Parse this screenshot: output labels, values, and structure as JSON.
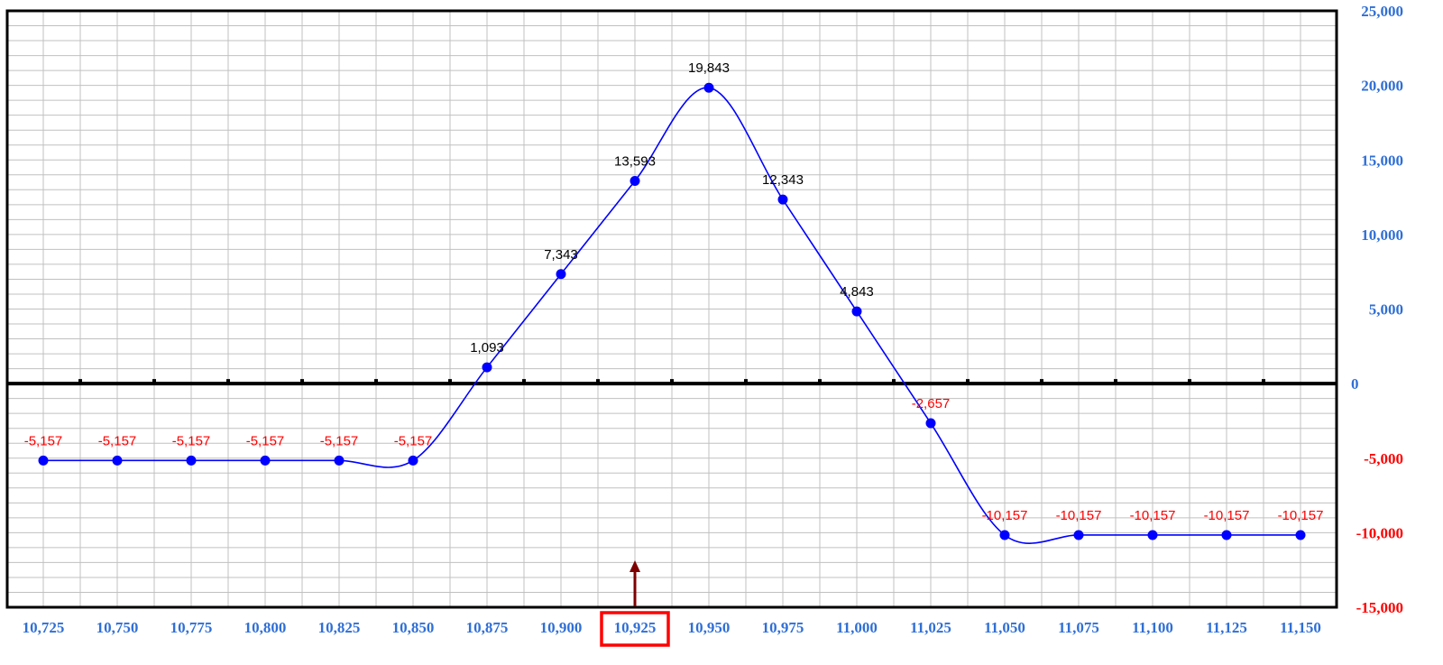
{
  "chart_data": {
    "type": "line",
    "x": [
      10725,
      10750,
      10775,
      10800,
      10825,
      10850,
      10875,
      10900,
      10925,
      10950,
      10975,
      11000,
      11025,
      11050,
      11075,
      11100,
      11125,
      11150
    ],
    "x_labels": [
      "10,725",
      "10,750",
      "10,775",
      "10,800",
      "10,825",
      "10,850",
      "10,875",
      "10,900",
      "10,925",
      "10,950",
      "10,975",
      "11,000",
      "11,025",
      "11,050",
      "11,075",
      "11,100",
      "11,125",
      "11,150"
    ],
    "values": [
      -5157,
      -5157,
      -5157,
      -5157,
      -5157,
      -5157,
      1093,
      7343,
      13593,
      19843,
      12343,
      4843,
      -2657,
      -10157,
      -10157,
      -10157,
      -10157,
      -10157
    ],
    "data_labels": [
      "-5,157",
      "-5,157",
      "-5,157",
      "-5,157",
      "-5,157",
      "-5,157",
      "1,093",
      "7,343",
      "13,593",
      "19,843",
      "12,343",
      "4,843",
      "-2,657",
      "-10,157",
      "-10,157",
      "-10,157",
      "-10,157",
      "-10,157"
    ],
    "y_ticks": [
      25000,
      20000,
      15000,
      10000,
      5000,
      0,
      -5000,
      -10000,
      -15000
    ],
    "y_tick_labels": [
      "25,000",
      "20,000",
      "15,000",
      "10,000",
      "5,000",
      "0",
      "-5,000",
      "-10,000",
      "-15,000"
    ],
    "ylim": [
      -15000,
      25000
    ],
    "grid": true,
    "highlighted_x": 10925,
    "highlighted_x_label": "10,925",
    "colors": {
      "line": "#0000ff",
      "marker": "#0000ff",
      "positive_label": "#000000",
      "negative_label": "#ff0000",
      "x_tick": "#2f6fd6",
      "y_tick_positive": "#2f6fd6",
      "y_tick_zero": "#2f6fd6",
      "y_tick_negative": "#ff0000",
      "highlight_box": "#ff0000",
      "arrow": "#7f0000",
      "grid": "#c0c0c0",
      "axis": "#000000"
    }
  }
}
